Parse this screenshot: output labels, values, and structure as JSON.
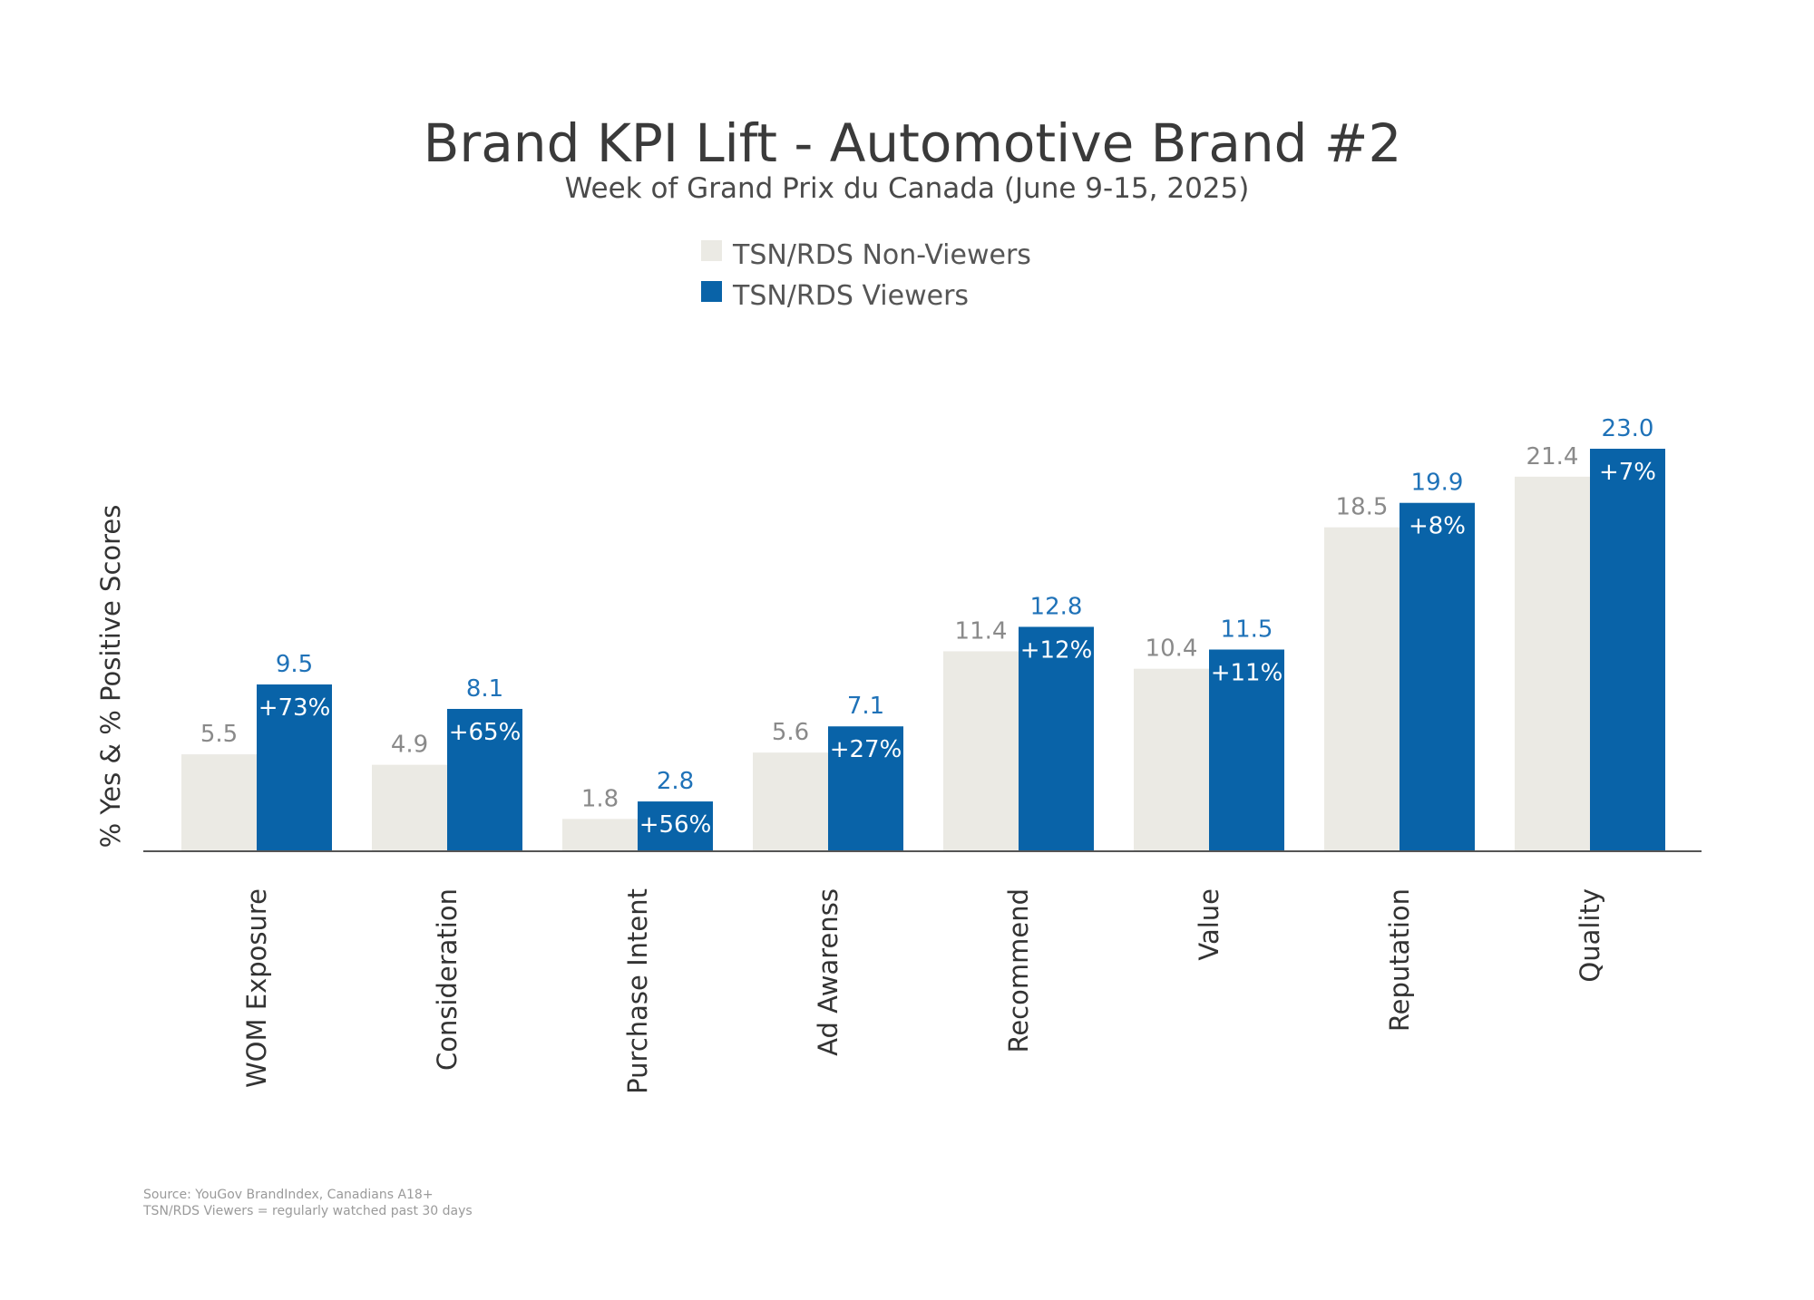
{
  "chart_data": {
    "type": "bar",
    "title": "Brand KPI Lift - Automotive Brand #2",
    "subtitle": "Week of Grand Prix du Canada (June 9-15, 2025)",
    "xlabel": "",
    "ylabel": "% Yes & % Positive Scores",
    "ylim": [
      0,
      23
    ],
    "grid": false,
    "legend_placement": "top-center",
    "categories": [
      "WOM Exposure",
      "Consideration",
      "Purchase Intent",
      "Ad Awarenss",
      "Recommend",
      "Value",
      "Reputation",
      "Quality"
    ],
    "series": [
      {
        "name": "TSN/RDS Non-Viewers",
        "color": "#ebeae4",
        "values": [
          5.5,
          4.9,
          1.8,
          5.6,
          11.4,
          10.4,
          18.5,
          21.4
        ]
      },
      {
        "name": "TSN/RDS Viewers",
        "color": "#0963a8",
        "values": [
          9.5,
          8.1,
          2.8,
          7.1,
          12.8,
          11.5,
          19.9,
          23.0
        ]
      }
    ],
    "value_labels": [
      [
        "5.5",
        "4.9",
        "1.8",
        "5.6",
        "11.4",
        "10.4",
        "18.5",
        "21.4"
      ],
      [
        "9.5",
        "8.1",
        "2.8",
        "7.1",
        "12.8",
        "11.5",
        "19.9",
        "23.0"
      ]
    ],
    "lift_labels": [
      "+73%",
      "+65%",
      "+56%",
      "+27%",
      "+12%",
      "+11%",
      "+8%",
      "+7%"
    ],
    "footer": [
      "Source: YouGov BrandIndex, Canadians A18+",
      "TSN/RDS Viewers = regularly watched past 30 days"
    ]
  }
}
